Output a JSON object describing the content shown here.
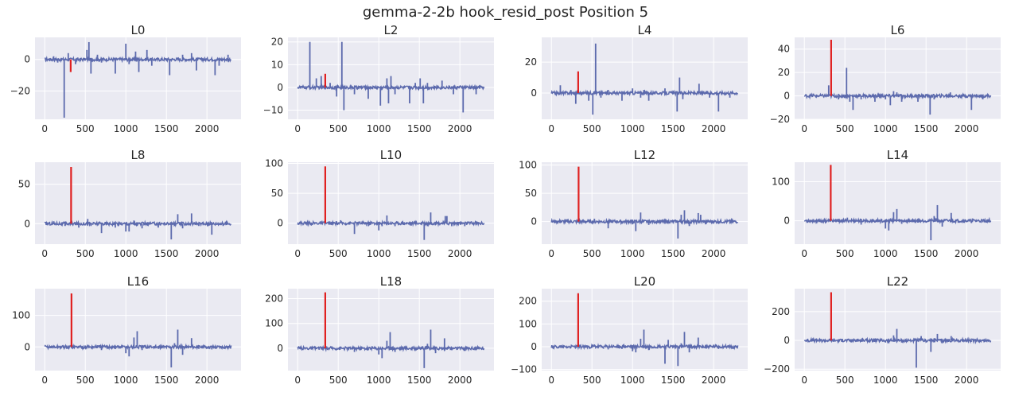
{
  "figure": {
    "title": "gemma-2-2b hook_resid_post Position 5"
  },
  "colors": {
    "background": "#eaeaf2",
    "grid": "#ffffff",
    "series": "#5c6aad",
    "highlight": "#e02020",
    "text": "#262626"
  },
  "chart_data": [
    {
      "type": "line",
      "title": "L0",
      "xlim": [
        -120,
        2420
      ],
      "ylim": [
        -38,
        14
      ],
      "xticks": [
        0,
        500,
        1000,
        1500,
        2000
      ],
      "yticks": [
        -20,
        0
      ],
      "xticklabels": [
        "0",
        "500",
        "1000",
        "1500",
        "2000"
      ],
      "yticklabels": [
        "−20",
        "0"
      ],
      "spikes": [
        [
          110,
          2
        ],
        [
          160,
          -2
        ],
        [
          240,
          -37
        ],
        [
          290,
          4
        ],
        [
          380,
          -3
        ],
        [
          520,
          6
        ],
        [
          545,
          11
        ],
        [
          570,
          -9
        ],
        [
          650,
          3
        ],
        [
          700,
          -2
        ],
        [
          870,
          -9
        ],
        [
          1000,
          10
        ],
        [
          1040,
          -3
        ],
        [
          1120,
          5
        ],
        [
          1160,
          -8
        ],
        [
          1260,
          6
        ],
        [
          1320,
          -4
        ],
        [
          1540,
          -10
        ],
        [
          1700,
          3
        ],
        [
          1810,
          4
        ],
        [
          1870,
          -7
        ],
        [
          1960,
          -1
        ],
        [
          2100,
          -10
        ],
        [
          2150,
          -4
        ],
        [
          2260,
          3
        ]
      ],
      "highlight": {
        "x": 320,
        "y": -8
      }
    },
    {
      "type": "line",
      "title": "L2",
      "xlim": [
        -120,
        2420
      ],
      "ylim": [
        -14,
        22
      ],
      "xticks": [
        0,
        500,
        1000,
        1500,
        2000
      ],
      "yticks": [
        -10,
        0,
        10,
        20
      ],
      "xticklabels": [
        "0",
        "500",
        "1000",
        "1500",
        "2000"
      ],
      "yticklabels": [
        "−10",
        "0",
        "10",
        "20"
      ],
      "spikes": [
        [
          150,
          20
        ],
        [
          230,
          4
        ],
        [
          290,
          5
        ],
        [
          400,
          2
        ],
        [
          480,
          -4
        ],
        [
          545,
          20
        ],
        [
          570,
          -10
        ],
        [
          700,
          -3
        ],
        [
          870,
          -5
        ],
        [
          1020,
          -8
        ],
        [
          1100,
          4
        ],
        [
          1120,
          -7
        ],
        [
          1150,
          5
        ],
        [
          1200,
          -3
        ],
        [
          1380,
          -7
        ],
        [
          1450,
          2
        ],
        [
          1510,
          4
        ],
        [
          1550,
          -7
        ],
        [
          1600,
          2
        ],
        [
          1780,
          3
        ],
        [
          1920,
          -3
        ],
        [
          2040,
          -11
        ],
        [
          2200,
          -3
        ]
      ],
      "highlight": {
        "x": 340,
        "y": 6
      }
    },
    {
      "type": "line",
      "title": "L4",
      "xlim": [
        -120,
        2420
      ],
      "ylim": [
        -17,
        36
      ],
      "xticks": [
        0,
        500,
        1000,
        1500,
        2000
      ],
      "yticks": [
        0,
        20
      ],
      "xticklabels": [
        "0",
        "500",
        "1000",
        "1500",
        "2000"
      ],
      "yticklabels": [
        "0",
        "20"
      ],
      "spikes": [
        [
          110,
          5
        ],
        [
          240,
          2
        ],
        [
          300,
          -7
        ],
        [
          460,
          -5
        ],
        [
          510,
          -14
        ],
        [
          545,
          32
        ],
        [
          610,
          -3
        ],
        [
          700,
          2
        ],
        [
          870,
          -5
        ],
        [
          1000,
          3
        ],
        [
          1100,
          -3
        ],
        [
          1140,
          2
        ],
        [
          1200,
          -5
        ],
        [
          1400,
          3
        ],
        [
          1550,
          -12
        ],
        [
          1580,
          10
        ],
        [
          1620,
          -4
        ],
        [
          1820,
          6
        ],
        [
          1950,
          -3
        ],
        [
          2060,
          -12
        ],
        [
          2200,
          -3
        ]
      ],
      "highlight": {
        "x": 330,
        "y": 14
      }
    },
    {
      "type": "line",
      "title": "L6",
      "xlim": [
        -120,
        2420
      ],
      "ylim": [
        -20,
        50
      ],
      "xticks": [
        0,
        500,
        1000,
        1500,
        2000
      ],
      "yticks": [
        -20,
        0,
        20,
        40
      ],
      "xticklabels": [
        "0",
        "500",
        "1000",
        "1500",
        "2000"
      ],
      "yticklabels": [
        "−20",
        "0",
        "20",
        "40"
      ],
      "spikes": [
        [
          110,
          2
        ],
        [
          300,
          9
        ],
        [
          420,
          -3
        ],
        [
          520,
          24
        ],
        [
          560,
          -5
        ],
        [
          600,
          -12
        ],
        [
          700,
          -3
        ],
        [
          870,
          -5
        ],
        [
          1000,
          -3
        ],
        [
          1060,
          -8
        ],
        [
          1100,
          4
        ],
        [
          1140,
          3
        ],
        [
          1200,
          -5
        ],
        [
          1400,
          -5
        ],
        [
          1550,
          -16
        ],
        [
          1600,
          -3
        ],
        [
          1800,
          3
        ],
        [
          1900,
          -2
        ],
        [
          2060,
          -12
        ],
        [
          2200,
          -3
        ]
      ],
      "highlight": {
        "x": 330,
        "y": 48
      }
    },
    {
      "type": "line",
      "title": "L8",
      "xlim": [
        -120,
        2420
      ],
      "ylim": [
        -26,
        78
      ],
      "xticks": [
        0,
        500,
        1000,
        1500,
        2000
      ],
      "yticks": [
        0,
        50
      ],
      "xticklabels": [
        "0",
        "500",
        "1000",
        "1500",
        "2000"
      ],
      "yticklabels": [
        "0",
        "50"
      ],
      "spikes": [
        [
          110,
          3
        ],
        [
          250,
          -3
        ],
        [
          420,
          -5
        ],
        [
          530,
          6
        ],
        [
          570,
          -3
        ],
        [
          700,
          -12
        ],
        [
          870,
          -5
        ],
        [
          1000,
          -10
        ],
        [
          1040,
          -10
        ],
        [
          1100,
          4
        ],
        [
          1140,
          -3
        ],
        [
          1200,
          -6
        ],
        [
          1400,
          -5
        ],
        [
          1560,
          -20
        ],
        [
          1600,
          -3
        ],
        [
          1640,
          12
        ],
        [
          1700,
          -6
        ],
        [
          1810,
          13
        ],
        [
          1900,
          -3
        ],
        [
          2060,
          -14
        ],
        [
          2200,
          -3
        ]
      ],
      "highlight": {
        "x": 325,
        "y": 72
      }
    },
    {
      "type": "line",
      "title": "L10",
      "xlim": [
        -120,
        2420
      ],
      "ylim": [
        -35,
        102
      ],
      "xticks": [
        0,
        500,
        1000,
        1500,
        2000
      ],
      "yticks": [
        0,
        50,
        100
      ],
      "xticklabels": [
        "0",
        "500",
        "1000",
        "1500",
        "2000"
      ],
      "yticklabels": [
        "0",
        "50",
        "100"
      ],
      "spikes": [
        [
          110,
          2
        ],
        [
          420,
          -3
        ],
        [
          530,
          5
        ],
        [
          700,
          -18
        ],
        [
          870,
          -5
        ],
        [
          1000,
          -12
        ],
        [
          1040,
          -5
        ],
        [
          1100,
          13
        ],
        [
          1200,
          -5
        ],
        [
          1400,
          -4
        ],
        [
          1560,
          -28
        ],
        [
          1600,
          -5
        ],
        [
          1640,
          18
        ],
        [
          1820,
          12
        ],
        [
          1840,
          12
        ],
        [
          1900,
          -5
        ],
        [
          2060,
          -5
        ],
        [
          2200,
          -3
        ]
      ],
      "highlight": {
        "x": 340,
        "y": 95
      }
    },
    {
      "type": "line",
      "title": "L12",
      "xlim": [
        -120,
        2420
      ],
      "ylim": [
        -40,
        105
      ],
      "xticks": [
        0,
        500,
        1000,
        1500,
        2000
      ],
      "yticks": [
        0,
        50,
        100
      ],
      "xticklabels": [
        "0",
        "500",
        "1000",
        "1500",
        "2000"
      ],
      "yticklabels": [
        "0",
        "50",
        "100"
      ],
      "spikes": [
        [
          110,
          3
        ],
        [
          420,
          -3
        ],
        [
          530,
          5
        ],
        [
          700,
          -12
        ],
        [
          870,
          -4
        ],
        [
          1000,
          -5
        ],
        [
          1040,
          -17
        ],
        [
          1100,
          16
        ],
        [
          1200,
          -6
        ],
        [
          1400,
          -4
        ],
        [
          1560,
          -30
        ],
        [
          1600,
          12
        ],
        [
          1640,
          20
        ],
        [
          1700,
          -8
        ],
        [
          1810,
          15
        ],
        [
          1840,
          12
        ],
        [
          1900,
          -5
        ],
        [
          2060,
          -4
        ],
        [
          2200,
          -3
        ]
      ],
      "highlight": {
        "x": 335,
        "y": 97
      }
    },
    {
      "type": "line",
      "title": "L14",
      "xlim": [
        -120,
        2420
      ],
      "ylim": [
        -60,
        150
      ],
      "xticks": [
        0,
        500,
        1000,
        1500,
        2000
      ],
      "yticks": [
        0,
        100
      ],
      "xticklabels": [
        "0",
        "500",
        "1000",
        "1500",
        "2000"
      ],
      "yticklabels": [
        "0",
        "100"
      ],
      "spikes": [
        [
          110,
          4
        ],
        [
          420,
          -3
        ],
        [
          530,
          8
        ],
        [
          700,
          -10
        ],
        [
          870,
          -5
        ],
        [
          1000,
          -20
        ],
        [
          1040,
          -25
        ],
        [
          1100,
          22
        ],
        [
          1140,
          30
        ],
        [
          1200,
          -8
        ],
        [
          1400,
          -5
        ],
        [
          1560,
          -50
        ],
        [
          1600,
          12
        ],
        [
          1640,
          40
        ],
        [
          1700,
          -15
        ],
        [
          1810,
          20
        ],
        [
          1900,
          -5
        ],
        [
          2060,
          -6
        ],
        [
          2200,
          -4
        ]
      ],
      "highlight": {
        "x": 325,
        "y": 143
      }
    },
    {
      "type": "line",
      "title": "L16",
      "xlim": [
        -120,
        2420
      ],
      "ylim": [
        -75,
        185
      ],
      "xticks": [
        0,
        500,
        1000,
        1500,
        2000
      ],
      "yticks": [
        0,
        100
      ],
      "xticklabels": [
        "0",
        "500",
        "1000",
        "1500",
        "2000"
      ],
      "yticklabels": [
        "0",
        "100"
      ],
      "spikes": [
        [
          110,
          4
        ],
        [
          420,
          -3
        ],
        [
          530,
          7
        ],
        [
          700,
          -10
        ],
        [
          870,
          -7
        ],
        [
          1000,
          -20
        ],
        [
          1040,
          -30
        ],
        [
          1100,
          30
        ],
        [
          1140,
          50
        ],
        [
          1200,
          -10
        ],
        [
          1400,
          -6
        ],
        [
          1560,
          -65
        ],
        [
          1600,
          12
        ],
        [
          1640,
          55
        ],
        [
          1700,
          -25
        ],
        [
          1810,
          28
        ],
        [
          1900,
          -6
        ],
        [
          2060,
          -8
        ],
        [
          2200,
          -5
        ]
      ],
      "highlight": {
        "x": 330,
        "y": 170
      }
    },
    {
      "type": "line",
      "title": "L18",
      "xlim": [
        -120,
        2420
      ],
      "ylim": [
        -90,
        240
      ],
      "xticks": [
        0,
        500,
        1000,
        1500,
        2000
      ],
      "yticks": [
        0,
        100,
        200
      ],
      "xticklabels": [
        "0",
        "500",
        "1000",
        "1500",
        "2000"
      ],
      "yticklabels": [
        "0",
        "100",
        "200"
      ],
      "spikes": [
        [
          110,
          4
        ],
        [
          420,
          -3
        ],
        [
          530,
          7
        ],
        [
          700,
          -15
        ],
        [
          870,
          -8
        ],
        [
          1000,
          -25
        ],
        [
          1040,
          -40
        ],
        [
          1100,
          30
        ],
        [
          1140,
          65
        ],
        [
          1200,
          -15
        ],
        [
          1400,
          -8
        ],
        [
          1560,
          -80
        ],
        [
          1600,
          18
        ],
        [
          1640,
          75
        ],
        [
          1700,
          -20
        ],
        [
          1810,
          40
        ],
        [
          1900,
          -8
        ],
        [
          2060,
          -10
        ],
        [
          2200,
          -5
        ]
      ],
      "highlight": {
        "x": 340,
        "y": 225
      }
    },
    {
      "type": "line",
      "title": "L20",
      "xlim": [
        -120,
        2420
      ],
      "ylim": [
        -105,
        255
      ],
      "xticks": [
        0,
        500,
        1000,
        1500,
        2000
      ],
      "yticks": [
        -100,
        0,
        100,
        200
      ],
      "xticklabels": [
        "0",
        "500",
        "1000",
        "1500",
        "2000"
      ],
      "yticklabels": [
        "−100",
        "0",
        "100",
        "200"
      ],
      "spikes": [
        [
          110,
          5
        ],
        [
          420,
          -5
        ],
        [
          530,
          10
        ],
        [
          700,
          -12
        ],
        [
          870,
          -10
        ],
        [
          1000,
          -20
        ],
        [
          1040,
          -25
        ],
        [
          1100,
          35
        ],
        [
          1140,
          75
        ],
        [
          1200,
          -15
        ],
        [
          1400,
          -75
        ],
        [
          1440,
          30
        ],
        [
          1560,
          -85
        ],
        [
          1600,
          15
        ],
        [
          1640,
          65
        ],
        [
          1700,
          -25
        ],
        [
          1810,
          40
        ],
        [
          1900,
          -8
        ],
        [
          2060,
          -10
        ],
        [
          2200,
          -5
        ]
      ],
      "highlight": {
        "x": 330,
        "y": 235
      }
    },
    {
      "type": "line",
      "title": "L22",
      "xlim": [
        -120,
        2420
      ],
      "ylim": [
        -210,
        360
      ],
      "xticks": [
        0,
        500,
        1000,
        1500,
        2000
      ],
      "yticks": [
        -200,
        0,
        200
      ],
      "xticklabels": [
        "0",
        "500",
        "1000",
        "1500",
        "2000"
      ],
      "yticklabels": [
        "−200",
        "0",
        "200"
      ],
      "spikes": [
        [
          110,
          5
        ],
        [
          420,
          -5
        ],
        [
          530,
          10
        ],
        [
          700,
          -10
        ],
        [
          870,
          -10
        ],
        [
          1000,
          -15
        ],
        [
          1040,
          -20
        ],
        [
          1100,
          35
        ],
        [
          1140,
          80
        ],
        [
          1200,
          -15
        ],
        [
          1380,
          -190
        ],
        [
          1440,
          30
        ],
        [
          1560,
          -80
        ],
        [
          1600,
          15
        ],
        [
          1640,
          45
        ],
        [
          1700,
          -20
        ],
        [
          1810,
          30
        ],
        [
          1900,
          -8
        ],
        [
          2060,
          -10
        ],
        [
          2200,
          -5
        ]
      ],
      "highlight": {
        "x": 330,
        "y": 335
      }
    }
  ]
}
